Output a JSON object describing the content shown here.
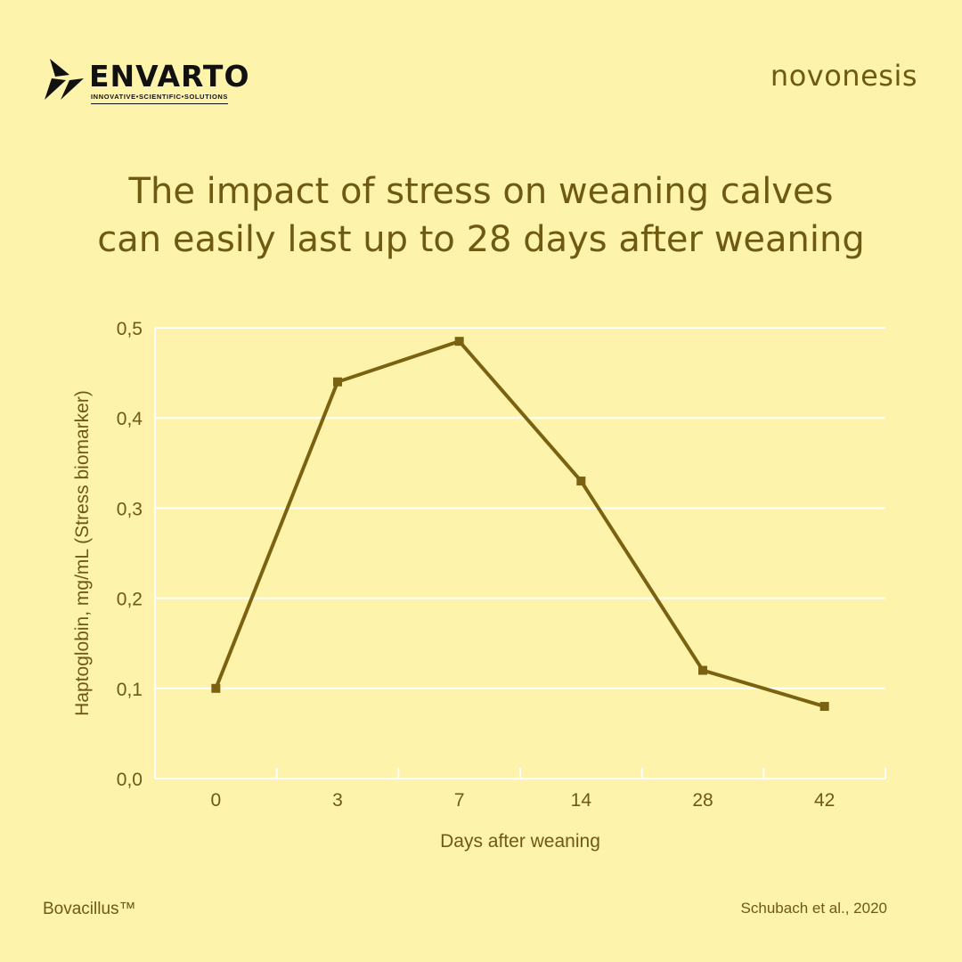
{
  "header": {
    "envarto_logo": "ENVARTO",
    "envarto_tagline": "INNOVATIVE•SCIENTIFIC•SOLUTIONS",
    "novonesis_logo": "novonesis"
  },
  "title_lines": [
    "The impact of stress on weaning calves",
    "can easily last up to 28 days after weaning"
  ],
  "footer": {
    "brand": "Bovacillus™",
    "citation": "Schubach et al., 2020"
  },
  "colors": {
    "background": "#fdf3ab",
    "line": "#7a6210",
    "text": "#6f5a12",
    "grid": "#ffffff"
  },
  "chart_data": {
    "type": "line",
    "categories": [
      "0",
      "3",
      "7",
      "14",
      "28",
      "42"
    ],
    "series": [
      {
        "values": [
          0.1,
          0.44,
          0.485,
          0.33,
          0.12,
          0.08
        ]
      }
    ],
    "xlabel": "Days after weaning",
    "ylabel": "Haptoglobin, mg/mL (Stress biomarker)",
    "ylim": [
      0,
      0.5
    ],
    "yticks": [
      "0,0",
      "0,1",
      "0,2",
      "0,3",
      "0,4",
      "0,5"
    ],
    "grid": true,
    "legend": "none"
  }
}
